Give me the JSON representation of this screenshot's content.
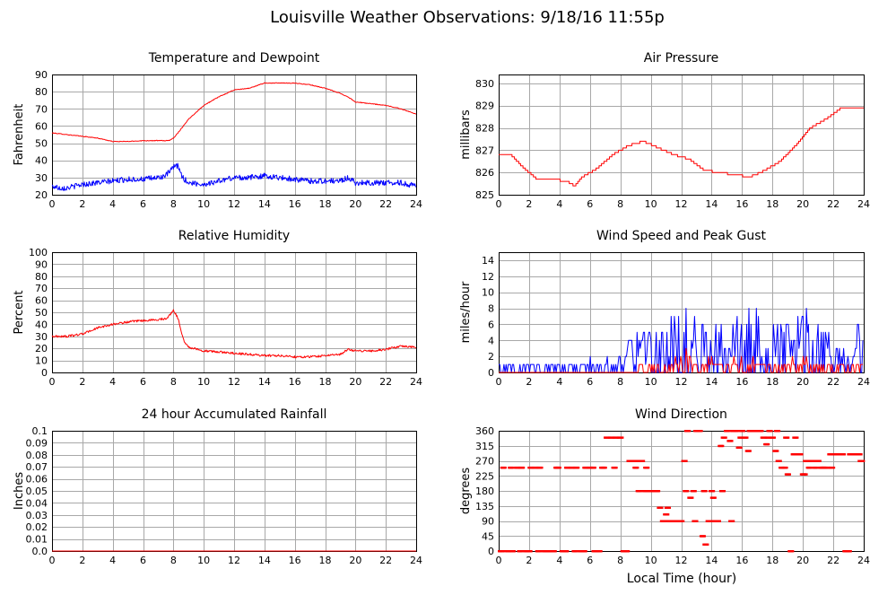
{
  "title": "Louisville Weather Observations: 9/18/16 11:55p",
  "x_axis_label": "Local Time (hour)",
  "chart_data": [
    {
      "id": "temp",
      "type": "line",
      "title": "Temperature and Dewpoint",
      "ylabel": "Fahrenheit",
      "xlim": [
        0,
        24
      ],
      "ylim": [
        20,
        90
      ],
      "xticks": [
        0,
        2,
        4,
        6,
        8,
        10,
        12,
        14,
        16,
        18,
        20,
        22,
        24
      ],
      "yticks": [
        20,
        30,
        40,
        50,
        60,
        70,
        80,
        90
      ],
      "grid": true,
      "series": [
        {
          "color": "#ff0000",
          "noise": 0.2,
          "x": [
            0,
            1,
            2,
            3,
            4,
            5,
            6,
            7,
            7.7,
            8,
            8.3,
            9,
            10,
            11,
            12,
            13,
            14,
            15,
            16,
            17,
            18,
            19,
            19.5,
            20,
            21,
            22,
            23,
            24
          ],
          "y": [
            56,
            55,
            54,
            53,
            51,
            51,
            51.5,
            51.5,
            51.5,
            53,
            56,
            64,
            72,
            77,
            81,
            82,
            85,
            85,
            85,
            84,
            82,
            79,
            77,
            74,
            73,
            72,
            70,
            67
          ]
        },
        {
          "color": "#0000ff",
          "noise": 1.6,
          "x": [
            0,
            0.5,
            1,
            2,
            3,
            4,
            5,
            6,
            7,
            7.5,
            8,
            8.3,
            8.6,
            9,
            10,
            11,
            12,
            13,
            14,
            15,
            16,
            17,
            18,
            19,
            19.5,
            20,
            21,
            22,
            23,
            24
          ],
          "y": [
            25,
            24,
            24,
            26,
            27,
            28,
            29,
            29,
            30,
            31,
            36,
            37,
            30,
            27,
            26,
            28,
            30,
            30,
            31,
            30,
            29,
            28,
            28,
            28,
            30,
            27,
            27,
            27,
            27,
            25
          ]
        }
      ]
    },
    {
      "id": "pressure",
      "type": "line",
      "title": "Air Pressure",
      "ylabel": "millibars",
      "xlim": [
        0,
        24
      ],
      "ylim": [
        825,
        830.4
      ],
      "xticks": [
        0,
        2,
        4,
        6,
        8,
        10,
        12,
        14,
        16,
        18,
        20,
        22,
        24
      ],
      "yticks": [
        825,
        826,
        827,
        828,
        829,
        830
      ],
      "grid": true,
      "series": [
        {
          "color": "#ff0000",
          "step": 0.1,
          "noise": 0,
          "x": [
            0,
            0.8,
            1.5,
            2.5,
            3.5,
            4.5,
            5,
            5.5,
            6.5,
            7.5,
            8.5,
            9.5,
            10.5,
            11.5,
            12.5,
            13.5,
            14.5,
            15.5,
            16.5,
            17.5,
            18.5,
            19.5,
            20.5,
            21.5,
            22.5,
            24
          ],
          "y": [
            826.8,
            826.8,
            826.3,
            825.7,
            825.7,
            825.6,
            825.4,
            825.8,
            826.2,
            826.8,
            827.2,
            827.4,
            827.1,
            826.8,
            826.6,
            826.1,
            826.0,
            825.9,
            825.8,
            826.1,
            826.5,
            827.2,
            828.0,
            828.4,
            828.9,
            828.9
          ]
        }
      ]
    },
    {
      "id": "humidity",
      "type": "line",
      "title": "Relative Humidity",
      "ylabel": "Percent",
      "xlim": [
        0,
        24
      ],
      "ylim": [
        0,
        100
      ],
      "xticks": [
        0,
        2,
        4,
        6,
        8,
        10,
        12,
        14,
        16,
        18,
        20,
        22,
        24
      ],
      "yticks": [
        0,
        10,
        20,
        30,
        40,
        50,
        60,
        70,
        80,
        90,
        100
      ],
      "grid": true,
      "series": [
        {
          "color": "#ff0000",
          "noise": 0.9,
          "x": [
            0,
            1,
            2,
            3,
            4,
            5,
            6,
            7,
            7.6,
            8,
            8.3,
            8.7,
            9,
            10,
            11,
            12,
            13,
            14,
            15,
            16,
            17,
            18,
            19,
            19.5,
            20,
            21,
            22,
            23,
            24
          ],
          "y": [
            30,
            30,
            32,
            37,
            40,
            42,
            43,
            44,
            45,
            52,
            45,
            26,
            21,
            18,
            17,
            16,
            15,
            14,
            14,
            13,
            13,
            14,
            15,
            19,
            18,
            18,
            19,
            22,
            21
          ]
        }
      ]
    },
    {
      "id": "wind",
      "type": "line",
      "title": "Wind Speed and Peak Gust",
      "ylabel": "miles/hour",
      "xlim": [
        0,
        24
      ],
      "ylim": [
        0,
        15
      ],
      "xticks": [
        0,
        2,
        4,
        6,
        8,
        10,
        12,
        14,
        16,
        18,
        20,
        22,
        24
      ],
      "yticks": [
        0,
        2,
        4,
        6,
        8,
        10,
        12,
        14
      ],
      "grid": true,
      "series": [
        {
          "color": "#0000ff",
          "mode": "spiky",
          "x": [
            0,
            1,
            2,
            3,
            4,
            5,
            6,
            7,
            8,
            8.5,
            9,
            10,
            11,
            12,
            12.3,
            13,
            14,
            15,
            16,
            16.8,
            17,
            18,
            19,
            20,
            20.5,
            21,
            22,
            23,
            23.8,
            24
          ],
          "y": [
            1,
            1,
            1,
            1,
            1,
            1,
            1.5,
            1.5,
            2,
            4,
            5,
            5,
            6,
            8,
            11,
            6,
            6,
            6,
            7,
            12,
            7,
            6,
            6,
            7,
            9,
            6,
            4,
            3,
            7,
            3
          ]
        },
        {
          "color": "#ff0000",
          "mode": "spiky",
          "x": [
            0,
            8.6,
            9,
            10,
            11,
            12,
            12.3,
            13,
            14,
            15,
            16,
            17,
            18,
            19,
            20,
            21,
            22,
            23,
            24
          ],
          "y": [
            0,
            0,
            1,
            1.2,
            1.3,
            2,
            3,
            1.5,
            1.5,
            1.5,
            1.5,
            1.5,
            1.4,
            1.4,
            2,
            1.5,
            1.2,
            1.2,
            1.2
          ]
        }
      ]
    },
    {
      "id": "rain",
      "type": "line",
      "title": "24 hour Accumulated Rainfall",
      "ylabel": "Inches",
      "xlim": [
        0,
        24
      ],
      "ylim": [
        0,
        0.1
      ],
      "xticks": [
        0,
        2,
        4,
        6,
        8,
        10,
        12,
        14,
        16,
        18,
        20,
        22,
        24
      ],
      "yticks": [
        0.0,
        0.01,
        0.02,
        0.03,
        0.04,
        0.05,
        0.06,
        0.07,
        0.08,
        0.09,
        0.1
      ],
      "ytick_labels": [
        "0.0",
        "0.01",
        "0.02",
        "0.03",
        "0.04",
        "0.05",
        "0.06",
        "0.07",
        "0.08",
        "0.09",
        "0.1"
      ],
      "grid": true,
      "series": [
        {
          "color": "#ff0000",
          "noise": 0,
          "x": [
            0,
            24
          ],
          "y": [
            0,
            0
          ]
        }
      ]
    },
    {
      "id": "direction",
      "type": "scatter",
      "title": "Wind Direction",
      "ylabel": "degrees",
      "xlim": [
        0,
        24
      ],
      "ylim": [
        0,
        360
      ],
      "xticks": [
        0,
        2,
        4,
        6,
        8,
        10,
        12,
        14,
        16,
        18,
        20,
        22,
        24
      ],
      "yticks": [
        0,
        45,
        90,
        135,
        180,
        225,
        270,
        315,
        360
      ],
      "grid": true,
      "series": [
        {
          "color": "#ff0000",
          "x": [
            0.0,
            0.3,
            0.6,
            0.9,
            1.2,
            1.5,
            1.8,
            2.1,
            2.4,
            2.7,
            3.0,
            3.3,
            3.6,
            3.9,
            4.2,
            4.5,
            4.8,
            5.1,
            5.4,
            5.7,
            6.0,
            6.3,
            6.6,
            6.9,
            7.1,
            7.4,
            7.7,
            8.0,
            8.2,
            8.4,
            8.6,
            8.8,
            9.0,
            9.2,
            9.4,
            9.6,
            9.8,
            10.0,
            10.2,
            10.4,
            10.6,
            10.8,
            11.0,
            11.2,
            11.4,
            11.6,
            11.8,
            12.0,
            12.2,
            12.4,
            12.6,
            12.8,
            13.0,
            13.2,
            13.4,
            13.6,
            13.8,
            14.0,
            14.2,
            14.4,
            14.6,
            14.8,
            15.0,
            15.2,
            15.4,
            15.6,
            15.8,
            16.0,
            16.2,
            16.4,
            16.6,
            16.8,
            17.0,
            17.2,
            17.4,
            17.6,
            17.8,
            18.0,
            18.2,
            18.4,
            18.6,
            18.8,
            19.0,
            19.2,
            19.4,
            19.6,
            19.8,
            20.0,
            20.2,
            20.4,
            20.6,
            20.8,
            21.0,
            21.2,
            21.4,
            21.6,
            21.8,
            22.0,
            22.2,
            22.4,
            22.6,
            22.8,
            23.0,
            23.2,
            23.4,
            23.6,
            23.8,
            24.0,
            0.2,
            0.8,
            1.4,
            2.0,
            2.6,
            3.2,
            3.8,
            4.4,
            5.0,
            5.6,
            6.2,
            6.8,
            7.6,
            9.1,
            9.7,
            10.3,
            11.1,
            11.7,
            12.3,
            12.9,
            13.5,
            14.1,
            14.7,
            15.3,
            15.9,
            16.5,
            17.1,
            17.7,
            18.3,
            18.9,
            19.5,
            20.1,
            20.7,
            21.3,
            21.9,
            22.5,
            23.1,
            23.7
          ],
          "y": [
            0,
            250,
            0,
            0,
            250,
            250,
            0,
            250,
            250,
            250,
            0,
            0,
            0,
            250,
            0,
            250,
            250,
            250,
            0,
            250,
            250,
            0,
            0,
            250,
            340,
            340,
            340,
            340,
            0,
            0,
            270,
            270,
            250,
            180,
            270,
            180,
            180,
            180,
            180,
            180,
            130,
            90,
            110,
            90,
            90,
            90,
            90,
            90,
            270,
            360,
            160,
            180,
            360,
            360,
            45,
            20,
            90,
            180,
            90,
            90,
            315,
            340,
            360,
            330,
            360,
            360,
            310,
            360,
            340,
            300,
            360,
            360,
            360,
            360,
            340,
            320,
            360,
            340,
            300,
            270,
            250,
            250,
            230,
            0,
            290,
            290,
            290,
            230,
            270,
            250,
            270,
            250,
            270,
            250,
            250,
            250,
            290,
            290,
            290,
            290,
            290,
            0,
            0,
            290,
            290,
            290,
            270,
            270,
            0,
            250,
            0,
            0,
            0,
            0,
            250,
            0,
            0,
            0,
            250,
            250,
            250,
            270,
            250,
            180,
            130,
            90,
            180,
            90,
            180,
            160,
            180,
            90,
            340,
            360,
            360,
            340,
            360,
            340,
            340,
            230,
            270,
            250,
            250,
            290,
            290,
            290
          ]
        }
      ]
    }
  ]
}
